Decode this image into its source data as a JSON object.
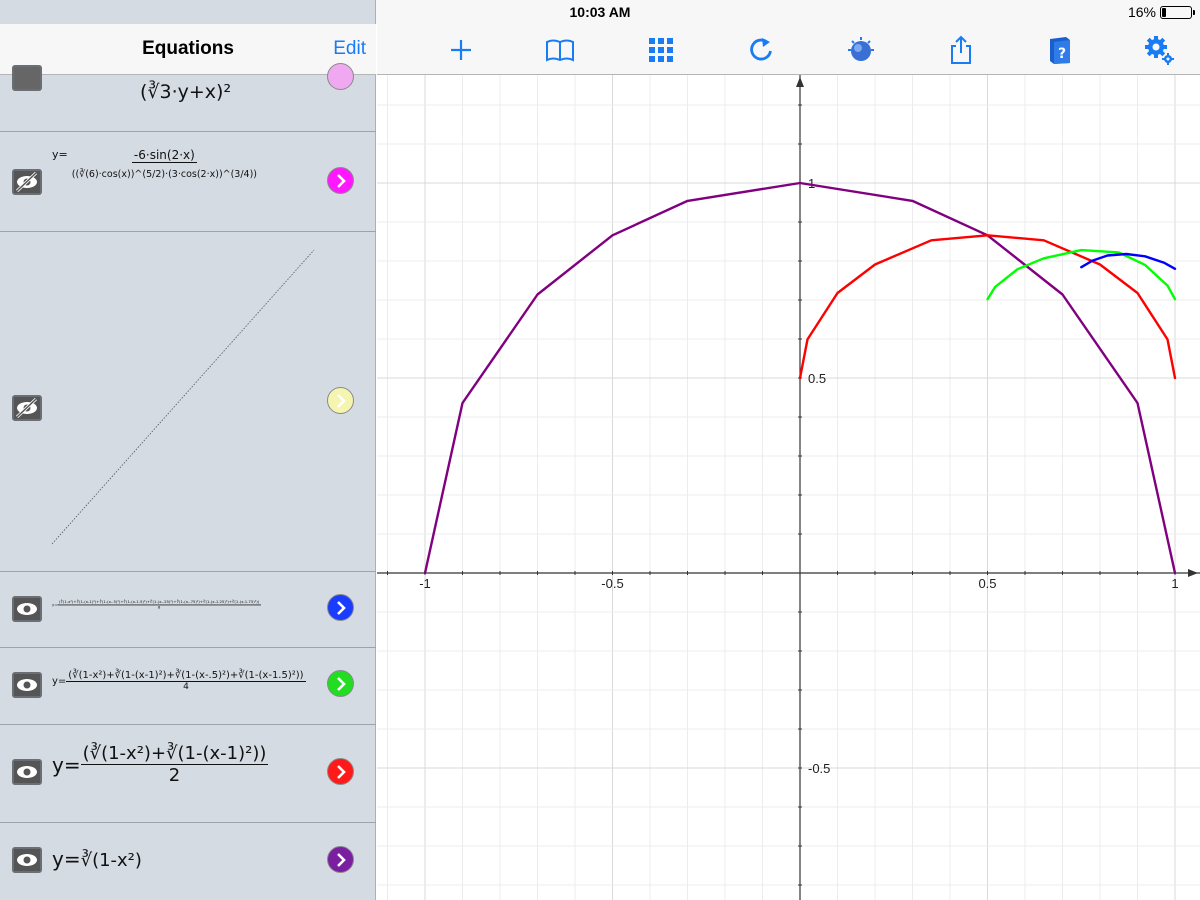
{
  "status": {
    "device": "iPad",
    "time": "10:03 AM",
    "battery": "16%",
    "battery_fraction": 0.16
  },
  "left_panel": {
    "title": "Equations",
    "edit_label": "Edit",
    "equations": [
      {
        "prefix": "",
        "numerator": "(∛3·y+x)²",
        "color": "#e88ee8",
        "visible": false
      },
      {
        "prefix": "y=",
        "numerator": "-6·sin(2·x)",
        "denominator": "((∛(6)·cos(x))^(5/2)·(3·cos(2·x))^(3/4))",
        "color": "#ff18ff",
        "visible": false
      },
      {
        "prefix": "",
        "numerator": "",
        "color": "#f5f5b0",
        "visible": false
      },
      {
        "prefix": "y=",
        "numerator": "(∛(1-x²)+∛(1-(x-1)²)+∛(1-(x-.5)²)+∛(1-(x-1.5)²)+∛(1-(x-.25)²)+∛(1-(x-.75)²)+∛(1-(x-1.25)²)+∛(1-(x-1.75)²))",
        "denominator": "8",
        "color": "#1a3cff",
        "visible": true
      },
      {
        "prefix": "y=",
        "numerator": "(∛(1-x²)+∛(1-(x-1)²)+∛(1-(x-.5)²)+∛(1-(x-1.5)²))",
        "denominator": "4",
        "color": "#22dd22",
        "visible": true
      },
      {
        "prefix": "y=",
        "numerator": "(∛(1-x²)+∛(1-(x-1)²))",
        "denominator": "2",
        "color": "#ff1a1a",
        "visible": true
      },
      {
        "prefix": "y=",
        "numerator": "∛(1-x²)",
        "color": "#7a1fa0",
        "visible": true
      }
    ]
  },
  "toolbar": {
    "icons": [
      "plus-icon",
      "book-icon",
      "grid-icon",
      "refresh-icon",
      "globe-icon",
      "share-icon",
      "help-book-icon",
      "settings-icon"
    ],
    "accent": "#1a7cf5"
  },
  "chart_data": {
    "type": "line",
    "xlim": [
      -1.0,
      1.0
    ],
    "ylim": [
      -0.85,
      1.28
    ],
    "x_ticks": [
      "-1",
      "-0.5",
      "0.5",
      "1"
    ],
    "y_ticks": [
      "1",
      "0.5",
      "-0.5"
    ],
    "grid": true,
    "series": [
      {
        "color": "#800080",
        "x": [
          -1.0,
          -0.9,
          -0.7,
          -0.5,
          -0.3,
          0.0,
          0.3,
          0.5,
          0.7,
          0.9,
          1.0
        ],
        "y": [
          0.0,
          0.436,
          0.714,
          0.866,
          0.954,
          1.0,
          0.954,
          0.866,
          0.714,
          0.436,
          0.0
        ]
      },
      {
        "color": "#ff0000",
        "x": [
          0.0,
          0.02,
          0.1,
          0.2,
          0.35,
          0.5,
          0.65,
          0.8,
          0.9,
          0.98,
          1.0
        ],
        "y": [
          0.5,
          0.599,
          0.718,
          0.791,
          0.853,
          0.866,
          0.853,
          0.791,
          0.718,
          0.599,
          0.5
        ]
      },
      {
        "color": "#00ff00",
        "x": [
          0.5,
          0.52,
          0.58,
          0.65,
          0.75,
          0.85,
          0.92,
          0.98,
          1.0
        ],
        "y": [
          0.702,
          0.733,
          0.779,
          0.807,
          0.828,
          0.822,
          0.79,
          0.737,
          0.702
        ]
      },
      {
        "color": "#0000ff",
        "x": [
          0.75,
          0.78,
          0.82,
          0.87,
          0.92,
          0.97,
          1.0
        ],
        "y": [
          0.784,
          0.801,
          0.814,
          0.818,
          0.812,
          0.796,
          0.78
        ]
      }
    ]
  }
}
